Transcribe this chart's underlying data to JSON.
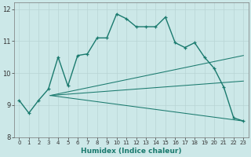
{
  "xlabel": "Humidex (Indice chaleur)",
  "bg_color": "#cce8e8",
  "line_color": "#1a7a6e",
  "grid_color": "#b8d4d4",
  "xlim": [
    -0.5,
    23.5
  ],
  "ylim": [
    8.0,
    12.2
  ],
  "yticks": [
    8,
    9,
    10,
    11,
    12
  ],
  "xticks": [
    0,
    1,
    2,
    3,
    4,
    5,
    6,
    7,
    8,
    9,
    10,
    11,
    12,
    13,
    14,
    15,
    16,
    17,
    18,
    19,
    20,
    21,
    22,
    23
  ],
  "series1_x": [
    0,
    1,
    2,
    3,
    4,
    5,
    6,
    7,
    8,
    9,
    10,
    11,
    12,
    13,
    14,
    15,
    16,
    17,
    18,
    19,
    20,
    21,
    22,
    23
  ],
  "series1_y": [
    9.15,
    8.75,
    9.15,
    9.5,
    10.5,
    9.6,
    10.55,
    10.6,
    11.1,
    11.1,
    11.85,
    11.7,
    11.45,
    11.45,
    11.45,
    11.75,
    10.95,
    10.8,
    10.95,
    10.5,
    10.15,
    9.55,
    8.6,
    8.5
  ],
  "fan_start_x": 3.2,
  "fan_start_y": 9.3,
  "fan_lines": [
    [
      23,
      10.55
    ],
    [
      23,
      9.75
    ],
    [
      23,
      8.5
    ]
  ]
}
